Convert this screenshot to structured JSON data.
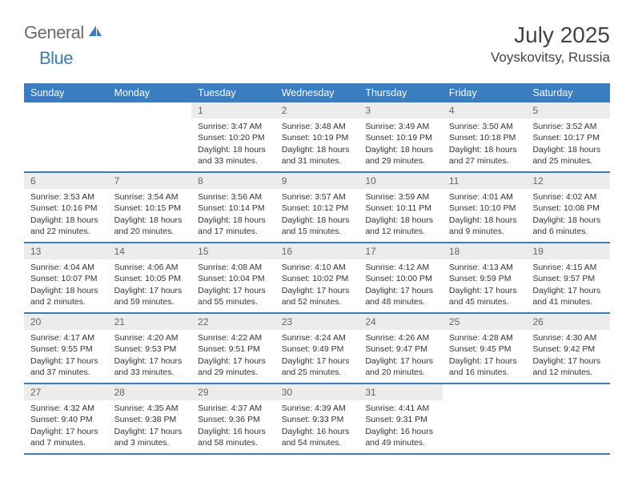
{
  "brand": {
    "part1": "General",
    "part2": "Blue"
  },
  "title": "July 2025",
  "location": "Voyskovitsy, Russia",
  "colors": {
    "brandBlue": "#3a7ec1",
    "brandGray": "#6b6b6b",
    "headerBg": "#3a7ec1",
    "dayBarBg": "#ececec",
    "text": "#333333"
  },
  "daysOfWeek": [
    "Sunday",
    "Monday",
    "Tuesday",
    "Wednesday",
    "Thursday",
    "Friday",
    "Saturday"
  ],
  "weeks": [
    [
      null,
      null,
      {
        "n": "1",
        "sr": "Sunrise: 3:47 AM",
        "ss": "Sunset: 10:20 PM",
        "dl1": "Daylight: 18 hours",
        "dl2": "and 33 minutes."
      },
      {
        "n": "2",
        "sr": "Sunrise: 3:48 AM",
        "ss": "Sunset: 10:19 PM",
        "dl1": "Daylight: 18 hours",
        "dl2": "and 31 minutes."
      },
      {
        "n": "3",
        "sr": "Sunrise: 3:49 AM",
        "ss": "Sunset: 10:19 PM",
        "dl1": "Daylight: 18 hours",
        "dl2": "and 29 minutes."
      },
      {
        "n": "4",
        "sr": "Sunrise: 3:50 AM",
        "ss": "Sunset: 10:18 PM",
        "dl1": "Daylight: 18 hours",
        "dl2": "and 27 minutes."
      },
      {
        "n": "5",
        "sr": "Sunrise: 3:52 AM",
        "ss": "Sunset: 10:17 PM",
        "dl1": "Daylight: 18 hours",
        "dl2": "and 25 minutes."
      }
    ],
    [
      {
        "n": "6",
        "sr": "Sunrise: 3:53 AM",
        "ss": "Sunset: 10:16 PM",
        "dl1": "Daylight: 18 hours",
        "dl2": "and 22 minutes."
      },
      {
        "n": "7",
        "sr": "Sunrise: 3:54 AM",
        "ss": "Sunset: 10:15 PM",
        "dl1": "Daylight: 18 hours",
        "dl2": "and 20 minutes."
      },
      {
        "n": "8",
        "sr": "Sunrise: 3:56 AM",
        "ss": "Sunset: 10:14 PM",
        "dl1": "Daylight: 18 hours",
        "dl2": "and 17 minutes."
      },
      {
        "n": "9",
        "sr": "Sunrise: 3:57 AM",
        "ss": "Sunset: 10:12 PM",
        "dl1": "Daylight: 18 hours",
        "dl2": "and 15 minutes."
      },
      {
        "n": "10",
        "sr": "Sunrise: 3:59 AM",
        "ss": "Sunset: 10:11 PM",
        "dl1": "Daylight: 18 hours",
        "dl2": "and 12 minutes."
      },
      {
        "n": "11",
        "sr": "Sunrise: 4:01 AM",
        "ss": "Sunset: 10:10 PM",
        "dl1": "Daylight: 18 hours",
        "dl2": "and 9 minutes."
      },
      {
        "n": "12",
        "sr": "Sunrise: 4:02 AM",
        "ss": "Sunset: 10:08 PM",
        "dl1": "Daylight: 18 hours",
        "dl2": "and 6 minutes."
      }
    ],
    [
      {
        "n": "13",
        "sr": "Sunrise: 4:04 AM",
        "ss": "Sunset: 10:07 PM",
        "dl1": "Daylight: 18 hours",
        "dl2": "and 2 minutes."
      },
      {
        "n": "14",
        "sr": "Sunrise: 4:06 AM",
        "ss": "Sunset: 10:05 PM",
        "dl1": "Daylight: 17 hours",
        "dl2": "and 59 minutes."
      },
      {
        "n": "15",
        "sr": "Sunrise: 4:08 AM",
        "ss": "Sunset: 10:04 PM",
        "dl1": "Daylight: 17 hours",
        "dl2": "and 55 minutes."
      },
      {
        "n": "16",
        "sr": "Sunrise: 4:10 AM",
        "ss": "Sunset: 10:02 PM",
        "dl1": "Daylight: 17 hours",
        "dl2": "and 52 minutes."
      },
      {
        "n": "17",
        "sr": "Sunrise: 4:12 AM",
        "ss": "Sunset: 10:00 PM",
        "dl1": "Daylight: 17 hours",
        "dl2": "and 48 minutes."
      },
      {
        "n": "18",
        "sr": "Sunrise: 4:13 AM",
        "ss": "Sunset: 9:59 PM",
        "dl1": "Daylight: 17 hours",
        "dl2": "and 45 minutes."
      },
      {
        "n": "19",
        "sr": "Sunrise: 4:15 AM",
        "ss": "Sunset: 9:57 PM",
        "dl1": "Daylight: 17 hours",
        "dl2": "and 41 minutes."
      }
    ],
    [
      {
        "n": "20",
        "sr": "Sunrise: 4:17 AM",
        "ss": "Sunset: 9:55 PM",
        "dl1": "Daylight: 17 hours",
        "dl2": "and 37 minutes."
      },
      {
        "n": "21",
        "sr": "Sunrise: 4:20 AM",
        "ss": "Sunset: 9:53 PM",
        "dl1": "Daylight: 17 hours",
        "dl2": "and 33 minutes."
      },
      {
        "n": "22",
        "sr": "Sunrise: 4:22 AM",
        "ss": "Sunset: 9:51 PM",
        "dl1": "Daylight: 17 hours",
        "dl2": "and 29 minutes."
      },
      {
        "n": "23",
        "sr": "Sunrise: 4:24 AM",
        "ss": "Sunset: 9:49 PM",
        "dl1": "Daylight: 17 hours",
        "dl2": "and 25 minutes."
      },
      {
        "n": "24",
        "sr": "Sunrise: 4:26 AM",
        "ss": "Sunset: 9:47 PM",
        "dl1": "Daylight: 17 hours",
        "dl2": "and 20 minutes."
      },
      {
        "n": "25",
        "sr": "Sunrise: 4:28 AM",
        "ss": "Sunset: 9:45 PM",
        "dl1": "Daylight: 17 hours",
        "dl2": "and 16 minutes."
      },
      {
        "n": "26",
        "sr": "Sunrise: 4:30 AM",
        "ss": "Sunset: 9:42 PM",
        "dl1": "Daylight: 17 hours",
        "dl2": "and 12 minutes."
      }
    ],
    [
      {
        "n": "27",
        "sr": "Sunrise: 4:32 AM",
        "ss": "Sunset: 9:40 PM",
        "dl1": "Daylight: 17 hours",
        "dl2": "and 7 minutes."
      },
      {
        "n": "28",
        "sr": "Sunrise: 4:35 AM",
        "ss": "Sunset: 9:38 PM",
        "dl1": "Daylight: 17 hours",
        "dl2": "and 3 minutes."
      },
      {
        "n": "29",
        "sr": "Sunrise: 4:37 AM",
        "ss": "Sunset: 9:36 PM",
        "dl1": "Daylight: 16 hours",
        "dl2": "and 58 minutes."
      },
      {
        "n": "30",
        "sr": "Sunrise: 4:39 AM",
        "ss": "Sunset: 9:33 PM",
        "dl1": "Daylight: 16 hours",
        "dl2": "and 54 minutes."
      },
      {
        "n": "31",
        "sr": "Sunrise: 4:41 AM",
        "ss": "Sunset: 9:31 PM",
        "dl1": "Daylight: 16 hours",
        "dl2": "and 49 minutes."
      },
      null,
      null
    ]
  ]
}
